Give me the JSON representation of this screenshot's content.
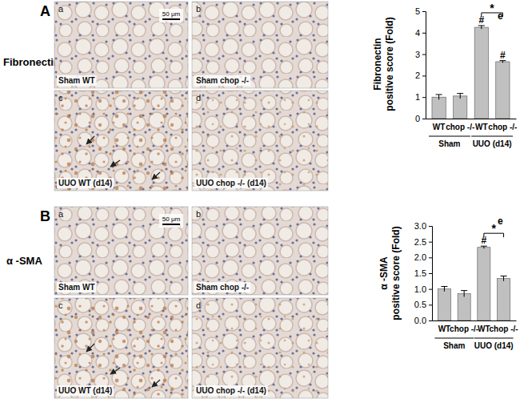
{
  "figure": {
    "panels": [
      {
        "letter": "A",
        "stain": "Fibronectin",
        "images": [
          {
            "letter": "a",
            "label": "Sham WT",
            "scale_bar": "50 μm"
          },
          {
            "letter": "b",
            "label": "Sham chop -/-"
          },
          {
            "letter": "c",
            "label": "UUO WT (d14)"
          },
          {
            "letter": "d",
            "label": "UUO chop -/- (d14)"
          }
        ]
      },
      {
        "letter": "B",
        "stain": "α -SMA",
        "images": [
          {
            "letter": "a",
            "label": "Sham WT",
            "scale_bar": "50 μm"
          },
          {
            "letter": "b",
            "label": "Sham chop -/-"
          },
          {
            "letter": "c",
            "label": "UUO WT (d14)"
          },
          {
            "letter": "d",
            "label": "UUO chop -/- (d14)"
          }
        ]
      }
    ]
  },
  "chart_data": [
    {
      "type": "bar",
      "panel_label": "e",
      "y_label": [
        "Fibronectin",
        "positive score (Fold)"
      ],
      "categories": [
        "WT",
        "chop -/-",
        "WT",
        "chop -/-"
      ],
      "groups": [
        {
          "label": "Sham",
          "categories": [
            0,
            1
          ]
        },
        {
          "label": "UUO (d14)",
          "categories": [
            2,
            3
          ]
        }
      ],
      "values": [
        1.0,
        1.05,
        4.25,
        2.65
      ],
      "errors": [
        0.12,
        0.12,
        0.08,
        0.05
      ],
      "color": "#c0c0c0",
      "ylim": [
        0,
        5
      ],
      "yticks": [
        0,
        1,
        2,
        3,
        4,
        5
      ],
      "annotations": [
        {
          "text": "#",
          "index": 2
        },
        {
          "text": "#",
          "index": 3
        },
        {
          "text": "*",
          "from": 2,
          "to": 3
        }
      ]
    },
    {
      "type": "bar",
      "panel_label": "e",
      "y_label": [
        "α -SMA",
        "positive score (Fold)"
      ],
      "categories": [
        "WT",
        "chop -/-",
        "WT",
        "chop -/-"
      ],
      "groups": [
        {
          "label": "Sham",
          "categories": [
            0,
            1
          ]
        },
        {
          "label": "UUO (d14)",
          "categories": [
            2,
            3
          ]
        }
      ],
      "values": [
        1.0,
        0.85,
        2.32,
        1.33
      ],
      "errors": [
        0.08,
        0.1,
        0.04,
        0.08
      ],
      "color": "#c0c0c0",
      "ylim": [
        0,
        3
      ],
      "yticks": [
        {
          "value": 0,
          "label": "0.0"
        },
        {
          "value": 0.5,
          "label": "0.5"
        },
        {
          "value": 1,
          "label": "1.0"
        },
        {
          "value": 1.5,
          "label": "1.5"
        },
        {
          "value": 2,
          "label": "2.0"
        },
        {
          "value": 2.5,
          "label": "2.5"
        },
        {
          "value": 3,
          "label": "3.0"
        }
      ],
      "annotations": [
        {
          "text": "#",
          "index": 2
        },
        {
          "text": "*",
          "from": 2,
          "to": 3
        }
      ]
    }
  ]
}
